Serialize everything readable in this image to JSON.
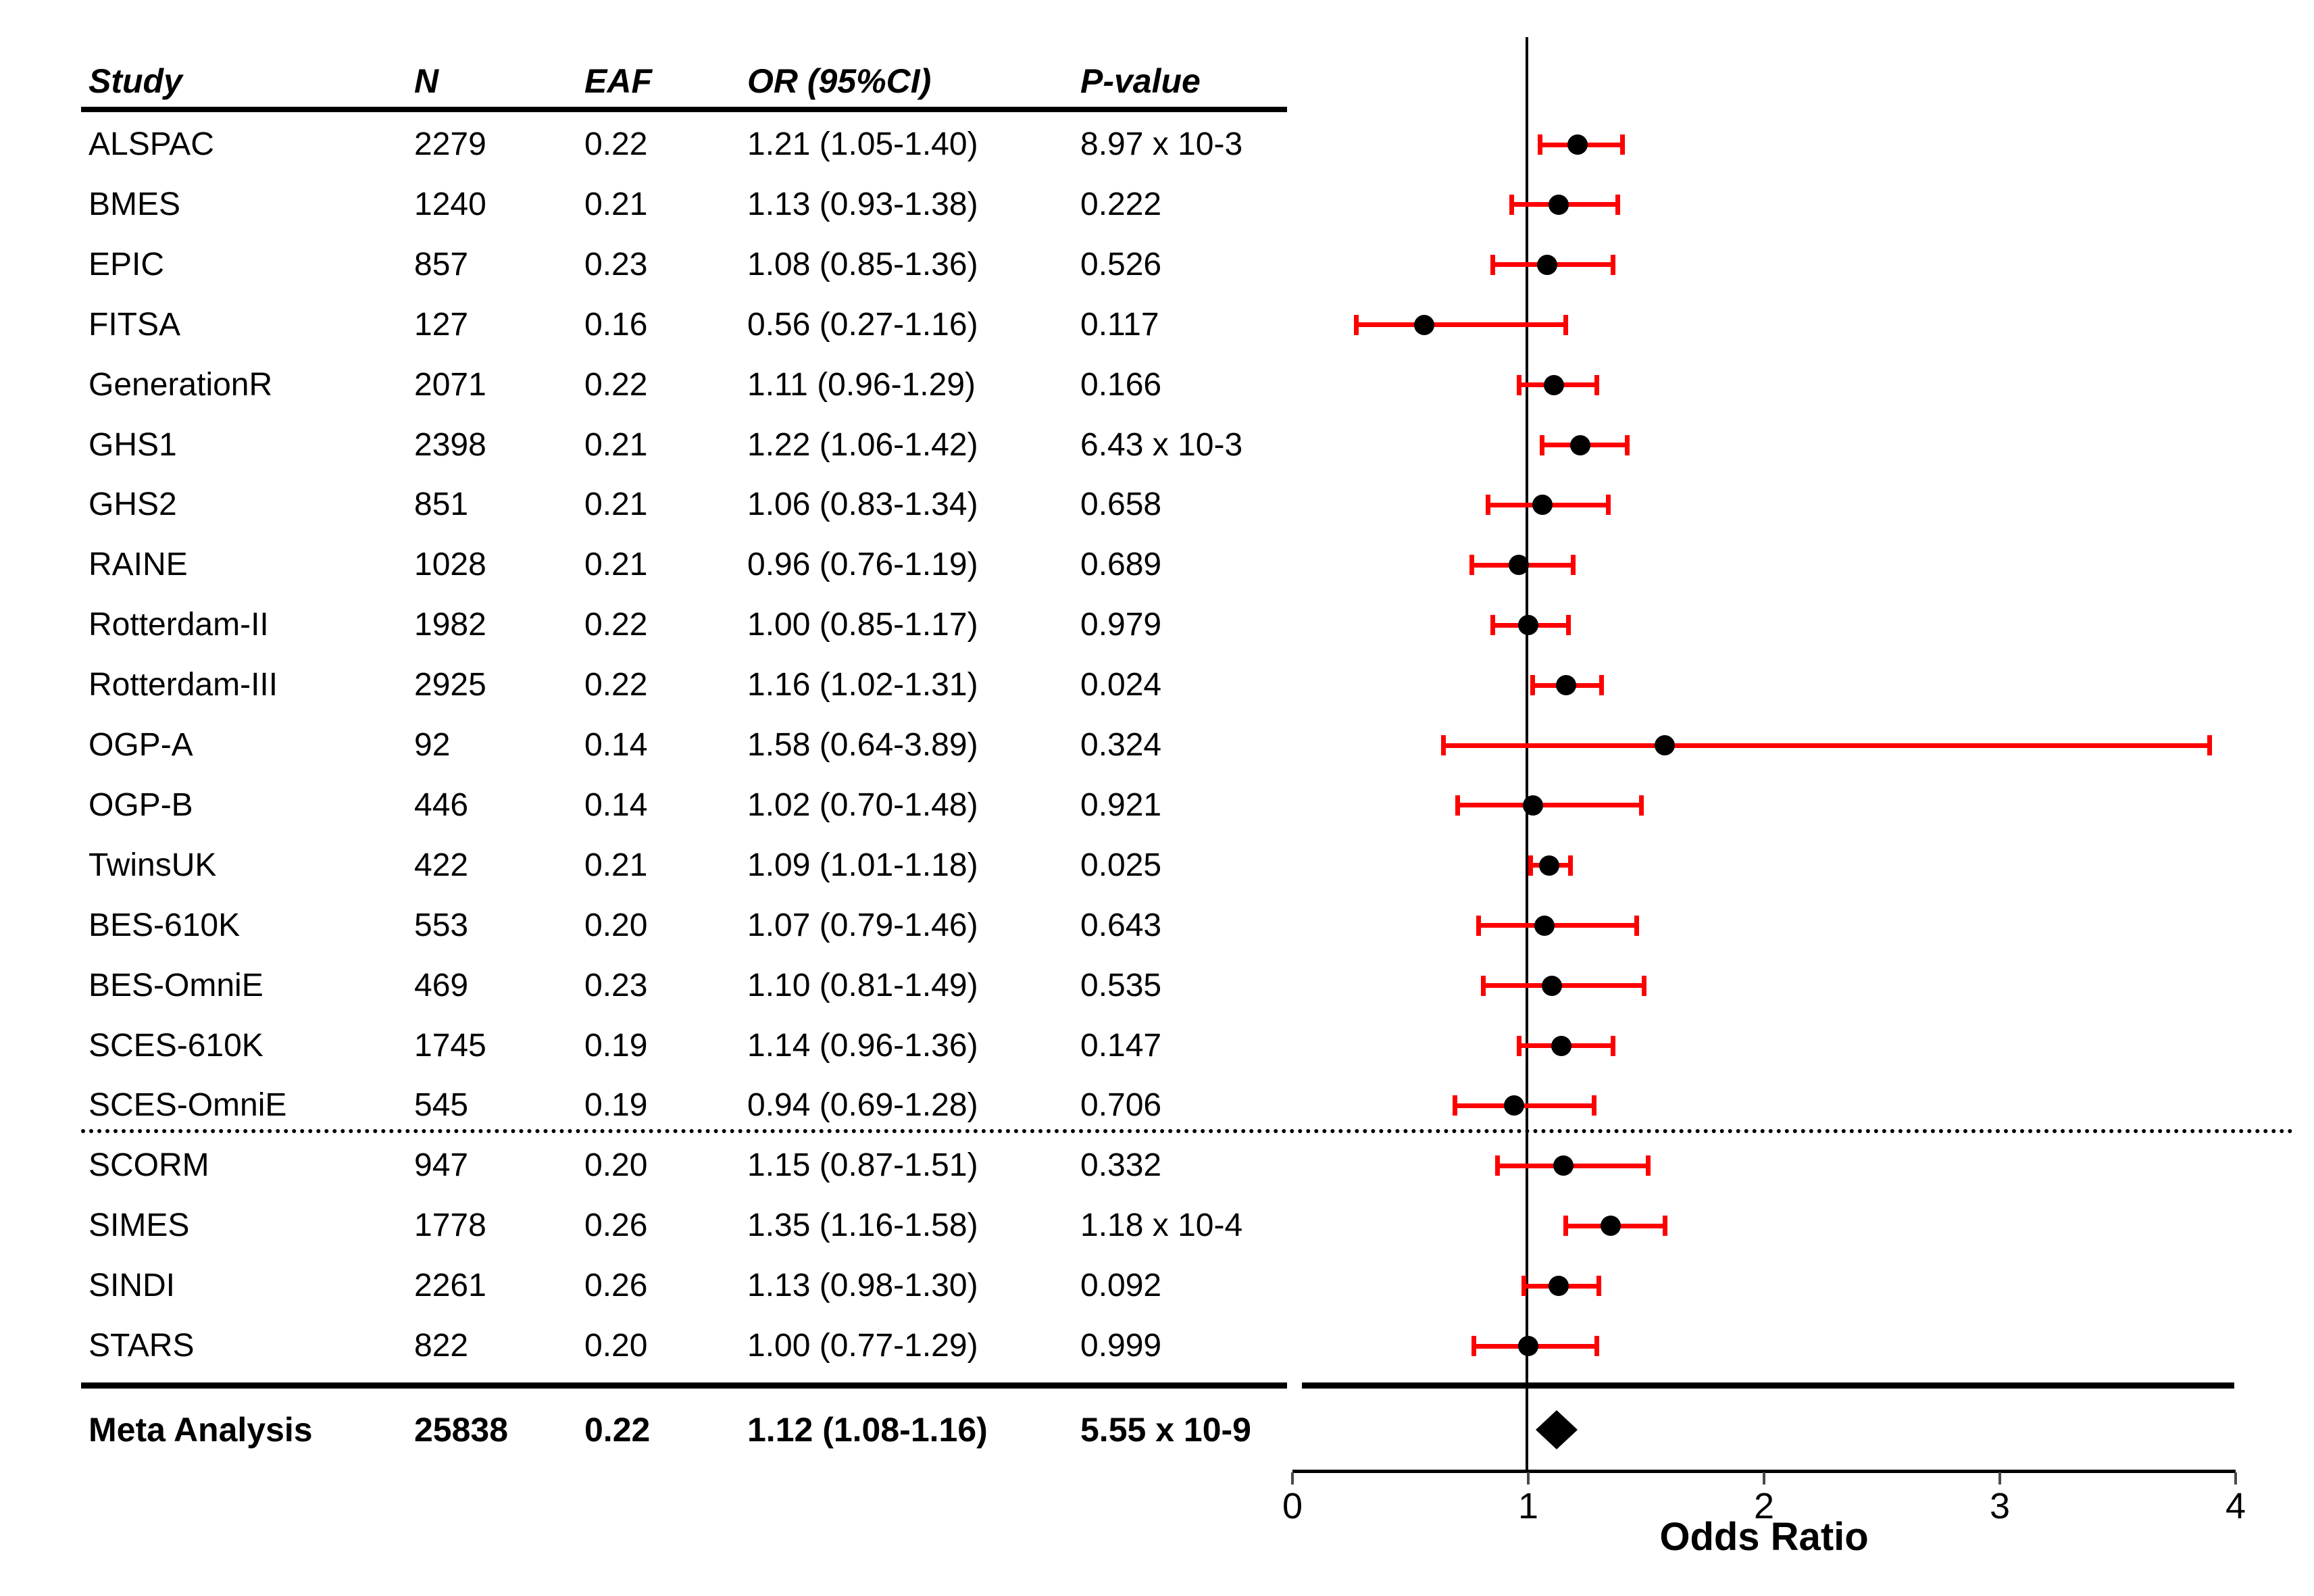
{
  "chart_data": {
    "type": "scatter",
    "subtype": "forest-plot",
    "title": "",
    "xlabel": "Odds Ratio",
    "xlim": [
      0,
      4
    ],
    "xticks": [
      0,
      1,
      2,
      3,
      4
    ],
    "reference_line_x": 1,
    "grid": false,
    "legend": null,
    "marker_color": "#000000",
    "ci_color": "#ff0000",
    "columns": [
      "Study",
      "N",
      "EAF",
      "OR (95%CI)",
      "P-value"
    ],
    "studies": [
      {
        "study": "ALSPAC",
        "n": "2279",
        "eaf": "0.22",
        "or": 1.21,
        "ci_low": 1.05,
        "ci_high": 1.4,
        "or_ci": "1.21 (1.05-1.40)",
        "p": "8.97 x 10-3"
      },
      {
        "study": "BMES",
        "n": "1240",
        "eaf": "0.21",
        "or": 1.13,
        "ci_low": 0.93,
        "ci_high": 1.38,
        "or_ci": "1.13 (0.93-1.38)",
        "p": "0.222"
      },
      {
        "study": "EPIC",
        "n": "857",
        "eaf": "0.23",
        "or": 1.08,
        "ci_low": 0.85,
        "ci_high": 1.36,
        "or_ci": "1.08 (0.85-1.36)",
        "p": "0.526"
      },
      {
        "study": "FITSA",
        "n": "127",
        "eaf": "0.16",
        "or": 0.56,
        "ci_low": 0.27,
        "ci_high": 1.16,
        "or_ci": "0.56 (0.27-1.16)",
        "p": "0.117"
      },
      {
        "study": "GenerationR",
        "n": "2071",
        "eaf": "0.22",
        "or": 1.11,
        "ci_low": 0.96,
        "ci_high": 1.29,
        "or_ci": "1.11 (0.96-1.29)",
        "p": "0.166"
      },
      {
        "study": "GHS1",
        "n": "2398",
        "eaf": "0.21",
        "or": 1.22,
        "ci_low": 1.06,
        "ci_high": 1.42,
        "or_ci": "1.22 (1.06-1.42)",
        "p": "6.43 x 10-3"
      },
      {
        "study": "GHS2",
        "n": "851",
        "eaf": "0.21",
        "or": 1.06,
        "ci_low": 0.83,
        "ci_high": 1.34,
        "or_ci": "1.06 (0.83-1.34)",
        "p": "0.658"
      },
      {
        "study": "RAINE",
        "n": "1028",
        "eaf": "0.21",
        "or": 0.96,
        "ci_low": 0.76,
        "ci_high": 1.19,
        "or_ci": "0.96 (0.76-1.19)",
        "p": "0.689"
      },
      {
        "study": "Rotterdam-II",
        "n": "1982",
        "eaf": "0.22",
        "or": 1.0,
        "ci_low": 0.85,
        "ci_high": 1.17,
        "or_ci": "1.00 (0.85-1.17)",
        "p": "0.979"
      },
      {
        "study": "Rotterdam-III",
        "n": "2925",
        "eaf": "0.22",
        "or": 1.16,
        "ci_low": 1.02,
        "ci_high": 1.31,
        "or_ci": "1.16 (1.02-1.31)",
        "p": "0.024"
      },
      {
        "study": "OGP-A",
        "n": "92",
        "eaf": "0.14",
        "or": 1.58,
        "ci_low": 0.64,
        "ci_high": 3.89,
        "or_ci": "1.58 (0.64-3.89)",
        "p": "0.324"
      },
      {
        "study": "OGP-B",
        "n": "446",
        "eaf": "0.14",
        "or": 1.02,
        "ci_low": 0.7,
        "ci_high": 1.48,
        "or_ci": "1.02 (0.70-1.48)",
        "p": "0.921"
      },
      {
        "study": "TwinsUK",
        "n": "422",
        "eaf": "0.21",
        "or": 1.09,
        "ci_low": 1.01,
        "ci_high": 1.18,
        "or_ci": "1.09 (1.01-1.18)",
        "p": "0.025"
      },
      {
        "study": "BES-610K",
        "n": "553",
        "eaf": "0.20",
        "or": 1.07,
        "ci_low": 0.79,
        "ci_high": 1.46,
        "or_ci": "1.07 (0.79-1.46)",
        "p": "0.643"
      },
      {
        "study": "BES-OmniE",
        "n": "469",
        "eaf": "0.23",
        "or": 1.1,
        "ci_low": 0.81,
        "ci_high": 1.49,
        "or_ci": "1.10 (0.81-1.49)",
        "p": "0.535"
      },
      {
        "study": "SCES-610K",
        "n": "1745",
        "eaf": "0.19",
        "or": 1.14,
        "ci_low": 0.96,
        "ci_high": 1.36,
        "or_ci": "1.14 (0.96-1.36)",
        "p": "0.147"
      },
      {
        "study": "SCES-OmniE",
        "n": "545",
        "eaf": "0.19",
        "or": 0.94,
        "ci_low": 0.69,
        "ci_high": 1.28,
        "or_ci": "0.94 (0.69-1.28)",
        "p": "0.706"
      },
      {
        "study": "SCORM",
        "n": "947",
        "eaf": "0.20",
        "or": 1.15,
        "ci_low": 0.87,
        "ci_high": 1.51,
        "or_ci": "1.15 (0.87-1.51)",
        "p": "0.332"
      },
      {
        "study": "SIMES",
        "n": "1778",
        "eaf": "0.26",
        "or": 1.35,
        "ci_low": 1.16,
        "ci_high": 1.58,
        "or_ci": "1.35 (1.16-1.58)",
        "p": "1.18 x 10-4"
      },
      {
        "study": "SINDI",
        "n": "2261",
        "eaf": "0.26",
        "or": 1.13,
        "ci_low": 0.98,
        "ci_high": 1.3,
        "or_ci": "1.13 (0.98-1.30)",
        "p": "0.092"
      },
      {
        "study": "STARS",
        "n": "822",
        "eaf": "0.20",
        "or": 1.0,
        "ci_low": 0.77,
        "ci_high": 1.29,
        "or_ci": "1.00 (0.77-1.29)",
        "p": "0.999"
      }
    ],
    "separator_after_index": 16,
    "meta": {
      "study": "Meta Analysis",
      "n": "25838",
      "eaf": "0.22",
      "or": 1.12,
      "ci_low": 1.08,
      "ci_high": 1.16,
      "or_ci": "1.12 (1.08-1.16)",
      "p": "5.55 x 10-9"
    }
  }
}
